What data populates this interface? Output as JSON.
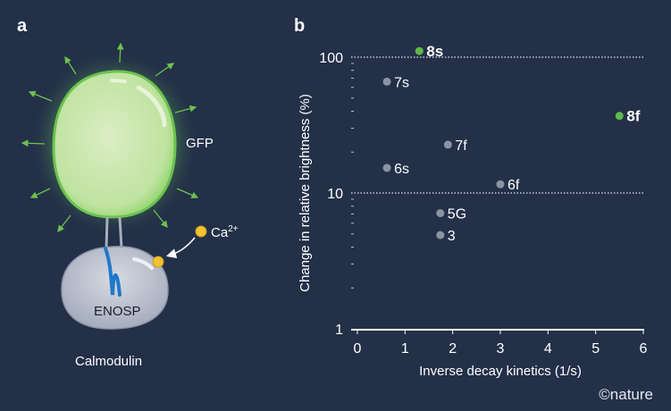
{
  "panels": {
    "a": "a",
    "b": "b"
  },
  "diagram": {
    "gfp_label": "GFP",
    "calcium_label": "Ca",
    "calcium_superscript": "2+",
    "enosp_label": "ENOSP",
    "calmodulin_label": "Calmodulin"
  },
  "chart_data": {
    "type": "scatter",
    "xlabel": "Inverse decay kinetics (1/s)",
    "ylabel": "Change in relative brightness (%)",
    "xlim": [
      0,
      6
    ],
    "ylim": [
      1,
      100
    ],
    "yscale": "log",
    "xticks": [
      "0",
      "1",
      "2",
      "3",
      "4",
      "5",
      "6"
    ],
    "yticks": [
      "1",
      "10",
      "100"
    ],
    "gridlines": "dotted at 10 and 100",
    "points": [
      {
        "label": "8s",
        "x": 1.3,
        "y": 111,
        "highlight": true
      },
      {
        "label": "7s",
        "x": 0.62,
        "y": 66,
        "highlight": false
      },
      {
        "label": "8f",
        "x": 5.5,
        "y": 37,
        "highlight": true
      },
      {
        "label": "7f",
        "x": 1.9,
        "y": 22.7,
        "highlight": false
      },
      {
        "label": "6s",
        "x": 0.62,
        "y": 15.3,
        "highlight": false
      },
      {
        "label": "6f",
        "x": 3.0,
        "y": 11.6,
        "highlight": false
      },
      {
        "label": "5G",
        "x": 1.74,
        "y": 7.1,
        "highlight": false
      },
      {
        "label": "3",
        "x": 1.74,
        "y": 4.9,
        "highlight": false
      }
    ],
    "colors": {
      "highlight": "#5fb84a",
      "normal": "#8a93a5",
      "background": "#233048"
    }
  },
  "credit": "©nature"
}
